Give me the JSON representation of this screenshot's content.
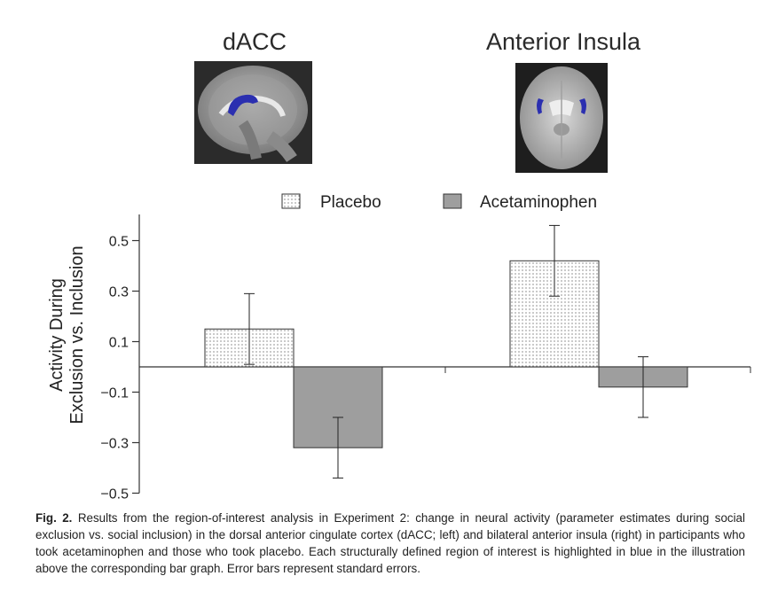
{
  "panels": {
    "left_title": "dACC",
    "right_title": "Anterior Insula"
  },
  "colors": {
    "placebo_fill": "#ffffff",
    "acetaminophen_fill": "#9e9e9e",
    "roi_blue": "#2b2fb0"
  },
  "chart_data": {
    "type": "bar",
    "categories": [
      "dACC",
      "Anterior Insula"
    ],
    "series": [
      {
        "name": "Placebo",
        "values": [
          0.15,
          0.42
        ],
        "errors": [
          0.14,
          0.14
        ],
        "pattern": "dotted"
      },
      {
        "name": "Acetaminophen",
        "values": [
          -0.32,
          -0.08
        ],
        "errors": [
          0.12,
          0.12
        ],
        "pattern": "solid-gray"
      }
    ],
    "ylabel_line1": "Activity During",
    "ylabel_line2": "Exclusion vs. Inclusion",
    "ylim": [
      -0.5,
      0.55
    ],
    "yticks": [
      0.5,
      0.3,
      0.1,
      -0.1,
      -0.3,
      -0.5
    ],
    "ytick_labels": [
      "0.5",
      "0.3",
      "0.1",
      "−0.1",
      "−0.3",
      "−0.5"
    ],
    "legend": [
      "Placebo",
      "Acetaminophen"
    ]
  },
  "caption": {
    "label": "Fig. 2.",
    "text": " Results from the region-of-interest analysis in Experiment 2: change in neural activity (parameter estimates during social exclusion vs. social inclusion) in the dorsal anterior cingulate cortex (dACC; left) and bilateral anterior insula (right) in participants who took acetaminophen and those who took placebo. Each structurally defined region of interest is highlighted in blue in the illustration above the corresponding bar graph. Error bars represent standard errors."
  }
}
